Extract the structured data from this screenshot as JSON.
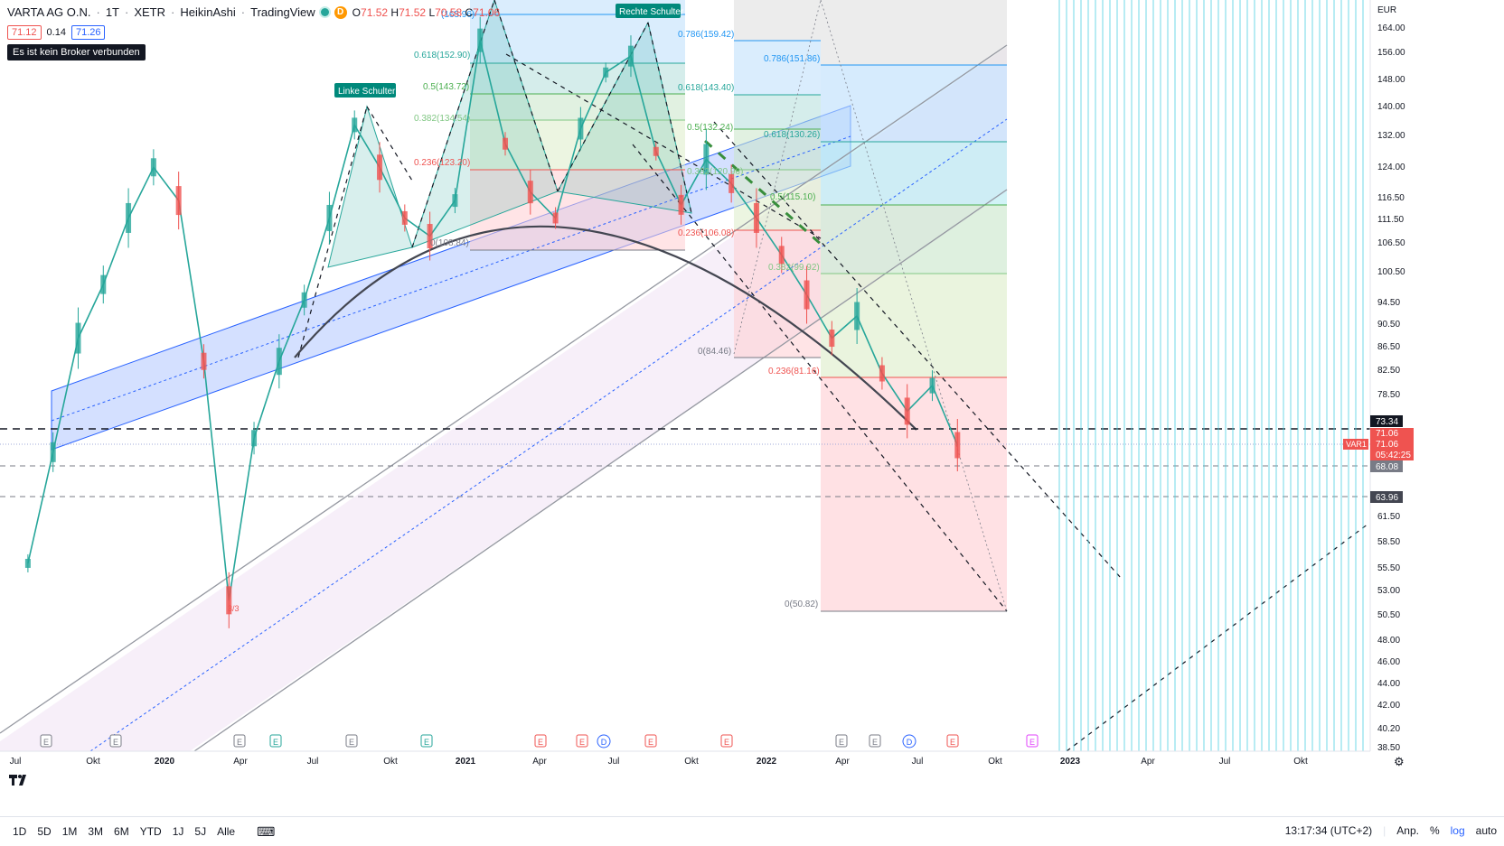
{
  "header": {
    "symbol": "VARTA AG O.N.",
    "interval": "1T",
    "exchange": "XETR",
    "chart_style": "HeikinAshi",
    "provider": "TradingView",
    "d_badge": "D",
    "o_label": "O",
    "o_value": "71.52",
    "h_label": "H",
    "h_value": "71.52",
    "l_label": "L",
    "l_value": "70.58",
    "c_label": "C",
    "c_value": "71.06"
  },
  "price_boxes": {
    "sell": "71.12",
    "spread": "0.14",
    "buy": "71.26"
  },
  "broker_tooltip": "Es ist kein Broker verbunden",
  "axis": {
    "currency": "EUR",
    "y_ticks": [
      "164.00",
      "156.00",
      "148.00",
      "140.00",
      "132.00",
      "124.00",
      "116.50",
      "111.50",
      "106.50",
      "100.50",
      "94.50",
      "90.50",
      "86.50",
      "82.50",
      "78.50",
      "73.34",
      "71.06",
      "71.06",
      "68.08",
      "63.96",
      "61.50",
      "58.50",
      "55.50",
      "53.00",
      "50.50",
      "48.00",
      "46.00",
      "44.00",
      "42.00",
      "40.20",
      "38.50"
    ],
    "x_ticks": [
      "Jul",
      "Okt",
      "2020",
      "Apr",
      "Jul",
      "Okt",
      "2021",
      "Apr",
      "Jul",
      "Okt",
      "2022",
      "Apr",
      "Jul",
      "Okt",
      "2023",
      "Apr",
      "Jul",
      "Okt"
    ]
  },
  "price_labels": {
    "level_73": "73.34",
    "last": "71.06",
    "last2": "71.06",
    "countdown": "05:42:25",
    "symbol_tag": "VAR1",
    "level_68": "68.08",
    "level_64": "63.96"
  },
  "annotations": {
    "left_shoulder": "Linke Schulter",
    "right_shoulder": "Rechte Schulter",
    "split_mark": "3/3"
  },
  "fib_sets": {
    "fib1": [
      "(165.96)",
      "0.618(152.90)",
      "0.5(143.72)",
      "0.382(134.54)",
      "0.236(123.20)",
      "0(108.84)"
    ],
    "fib2": [
      "0.786(159.42)",
      "0.618(143.40)",
      "0.5(132.24)",
      "0.382(120.96)",
      "0.236(106.08)",
      "0(84.46)"
    ],
    "fib3": [
      "0.786(151.86)",
      "0.618(130.26)",
      "0.5(115.10)",
      "0.382(99.92)",
      "0.236(81.16)",
      "0(50.82)"
    ]
  },
  "event_markers": [
    {
      "t": "E",
      "c": "#787b86",
      "x": 51
    },
    {
      "t": "E",
      "c": "#787b86",
      "x": 128
    },
    {
      "t": "E",
      "c": "#787b86",
      "x": 265
    },
    {
      "t": "E",
      "c": "#26a69a",
      "x": 305
    },
    {
      "t": "E",
      "c": "#787b86",
      "x": 389
    },
    {
      "t": "E",
      "c": "#26a69a",
      "x": 472
    },
    {
      "t": "E",
      "c": "#ef5350",
      "x": 598
    },
    {
      "t": "E",
      "c": "#ef5350",
      "x": 644
    },
    {
      "t": "D",
      "c": "#2962ff",
      "x": 668
    },
    {
      "t": "E",
      "c": "#ef5350",
      "x": 720
    },
    {
      "t": "E",
      "c": "#ef5350",
      "x": 804
    },
    {
      "t": "E",
      "c": "#787b86",
      "x": 931
    },
    {
      "t": "E",
      "c": "#787b86",
      "x": 968
    },
    {
      "t": "D",
      "c": "#2962ff",
      "x": 1006
    },
    {
      "t": "E",
      "c": "#ef5350",
      "x": 1054
    },
    {
      "t": "E",
      "c": "#e040fb",
      "x": 1142
    }
  ],
  "bottom": {
    "timeframes": [
      "1D",
      "5D",
      "1M",
      "3M",
      "6M",
      "YTD",
      "1J",
      "5J",
      "Alle"
    ],
    "time": "13:17:34 (UTC+2)",
    "adj": "Anp.",
    "pct": "%",
    "log": "log",
    "auto": "auto"
  },
  "chart_data": {
    "type": "line",
    "title": "",
    "xlabel": "",
    "ylabel": "",
    "y_scale": "log",
    "x": [
      "2019-07",
      "2019-08",
      "2019-09",
      "2019-10",
      "2019-11",
      "2019-12",
      "2020-01",
      "2020-02",
      "2020-03",
      "2020-04",
      "2020-05",
      "2020-06",
      "2020-07",
      "2020-08",
      "2020-09",
      "2020-10",
      "2020-11",
      "2020-12",
      "2021-01",
      "2021-02",
      "2021-03",
      "2021-04",
      "2021-05",
      "2021-06",
      "2021-07",
      "2021-08",
      "2021-09",
      "2021-10",
      "2021-11",
      "2021-12",
      "2022-01",
      "2022-02",
      "2022-03",
      "2022-04",
      "2022-05",
      "2022-06",
      "2022-07",
      "2022-08"
    ],
    "series": [
      {
        "values": [
          56,
          70,
          88,
          98,
          112,
          124,
          116,
          84,
          52,
          72,
          84,
          95,
          112,
          135,
          124,
          112,
          108,
          116,
          160,
          130,
          118,
          112,
          134,
          150,
          155,
          128,
          115,
          126,
          120,
          112,
          104,
          96,
          88,
          92,
          82,
          76,
          80,
          71
        ]
      }
    ],
    "ylim": [
      38.5,
      168
    ]
  }
}
